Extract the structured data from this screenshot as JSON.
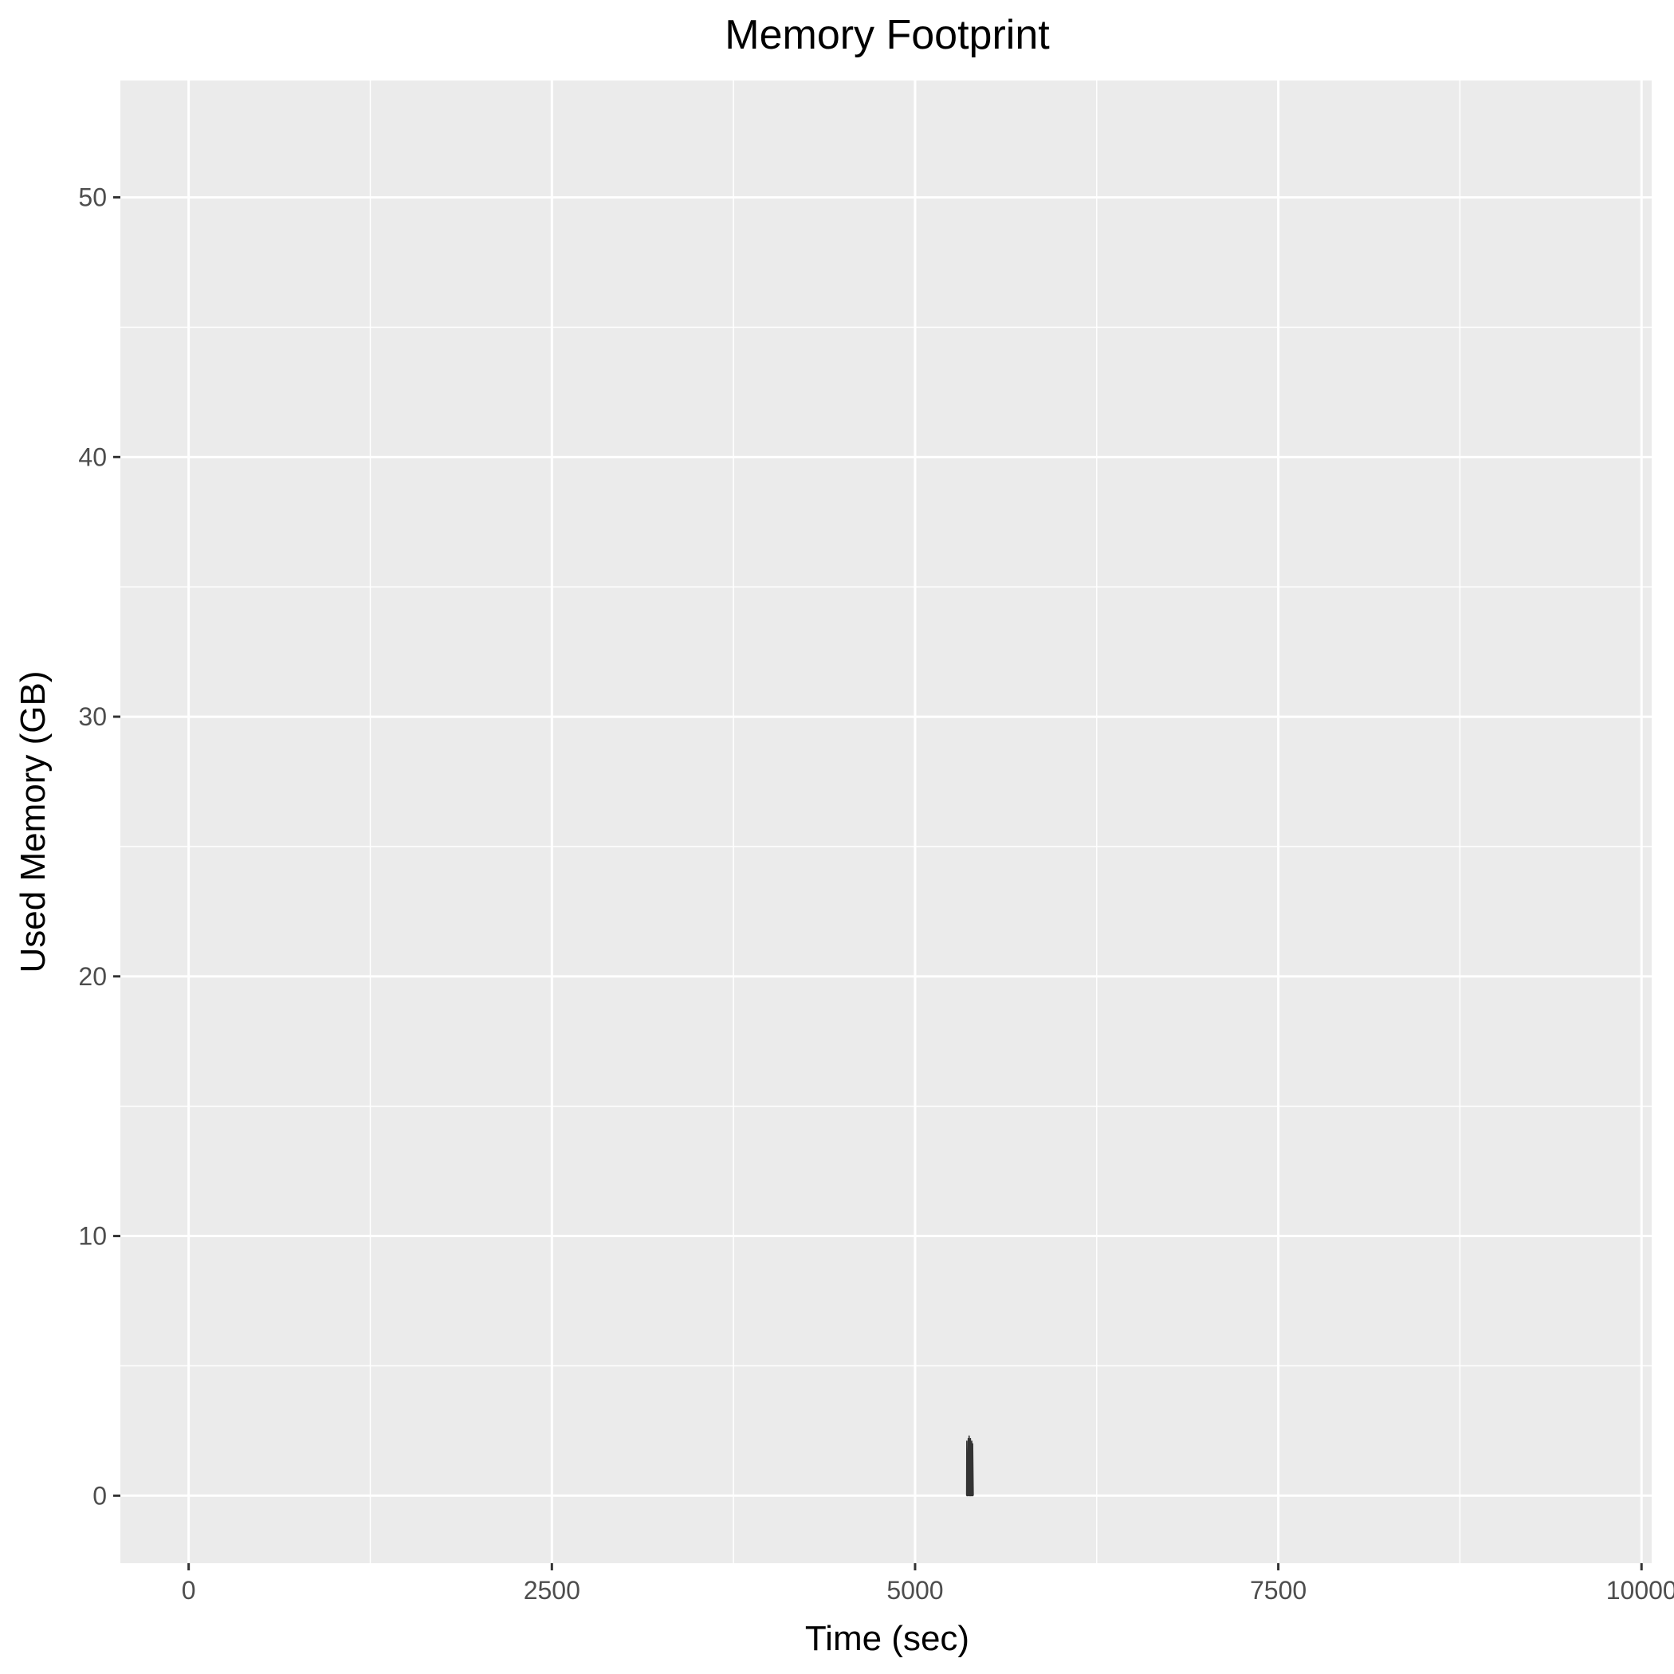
{
  "chart_data": {
    "type": "line",
    "title": "Memory Footprint",
    "xlabel": "Time (sec)",
    "ylabel": "Used Memory (GB)",
    "xlim": [
      -470,
      10070
    ],
    "ylim": [
      -2.6,
      54.5
    ],
    "x_ticks": [
      0,
      2500,
      5000,
      7500,
      10000
    ],
    "x_tick_labels": [
      "0",
      "2500",
      "5000",
      "7500",
      "10000"
    ],
    "x_minor_ticks": [
      1250,
      3750,
      6250,
      8750
    ],
    "y_ticks": [
      0,
      10,
      20,
      30,
      40,
      50
    ],
    "y_tick_labels": [
      "0",
      "10",
      "20",
      "30",
      "40",
      "50"
    ],
    "y_minor_ticks": [
      5,
      15,
      25,
      35,
      45
    ],
    "grid": true,
    "colors": {
      "panel": "#ebebeb",
      "grid": "#ffffff",
      "line": "#333333",
      "tick": "#333333"
    },
    "series": [
      {
        "name": "memory",
        "x": [
          5355,
          5356,
          5357,
          5362,
          5366,
          5370,
          5371,
          5372,
          5376,
          5380,
          5381,
          5382,
          5386,
          5390,
          5391,
          5392,
          5396,
          5400,
          5401
        ],
        "y": [
          0,
          2.1,
          0,
          0,
          2.2,
          0,
          0,
          2.3,
          0,
          0,
          2.2,
          0,
          0,
          2.1,
          0,
          0,
          2.0,
          0,
          0
        ]
      }
    ]
  }
}
